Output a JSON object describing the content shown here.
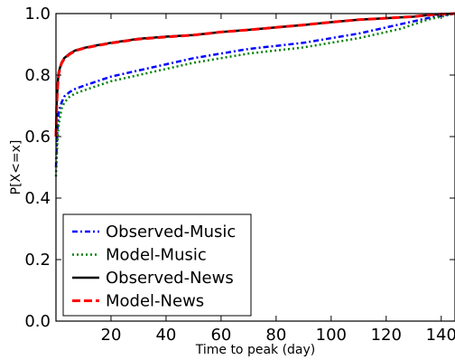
{
  "chart_data": {
    "type": "line",
    "title": "",
    "xlabel": "Time to peak (day)",
    "ylabel": "P[X<=x]",
    "xlim": [
      0,
      145
    ],
    "ylim": [
      0.0,
      1.0
    ],
    "x_ticks": [
      20,
      40,
      60,
      80,
      100,
      120,
      140
    ],
    "x_tick_labels": [
      "20",
      "40",
      "60",
      "80",
      "100",
      "120",
      "140"
    ],
    "y_ticks": [
      0.0,
      0.2,
      0.4,
      0.6,
      0.8,
      1.0
    ],
    "y_tick_labels": [
      "0.0",
      "0.2",
      "0.4",
      "0.6",
      "0.8",
      "1.0"
    ],
    "grid": false,
    "legend_position": "lower-left",
    "series": [
      {
        "name": "Observed-Music",
        "color": "#0000ff",
        "style": "dashdot",
        "x": [
          0,
          0.5,
          1,
          2,
          3,
          5,
          7,
          10,
          15,
          20,
          30,
          40,
          50,
          60,
          70,
          80,
          90,
          100,
          110,
          120,
          125,
          130,
          135,
          140,
          145
        ],
        "y": [
          0.5,
          0.62,
          0.68,
          0.71,
          0.73,
          0.745,
          0.755,
          0.765,
          0.78,
          0.795,
          0.815,
          0.835,
          0.855,
          0.87,
          0.885,
          0.895,
          0.905,
          0.92,
          0.935,
          0.955,
          0.965,
          0.975,
          0.985,
          0.993,
          1.0
        ]
      },
      {
        "name": "Model-Music",
        "color": "#008000",
        "style": "dotted",
        "x": [
          0,
          0.5,
          1,
          2,
          3,
          5,
          7,
          10,
          15,
          20,
          30,
          40,
          50,
          60,
          70,
          80,
          90,
          100,
          110,
          120,
          125,
          130,
          135,
          140,
          145
        ],
        "y": [
          0.47,
          0.58,
          0.64,
          0.69,
          0.71,
          0.73,
          0.74,
          0.75,
          0.765,
          0.78,
          0.8,
          0.82,
          0.84,
          0.855,
          0.87,
          0.88,
          0.89,
          0.905,
          0.92,
          0.94,
          0.95,
          0.965,
          0.98,
          0.99,
          1.0
        ]
      },
      {
        "name": "Observed-News",
        "color": "#000000",
        "style": "solid",
        "x": [
          0,
          0.3,
          0.7,
          1,
          2,
          3,
          5,
          7,
          10,
          15,
          20,
          30,
          40,
          50,
          60,
          70,
          80,
          90,
          100,
          110,
          120,
          130,
          135,
          140,
          145
        ],
        "y": [
          0.6,
          0.72,
          0.78,
          0.81,
          0.84,
          0.855,
          0.87,
          0.88,
          0.888,
          0.897,
          0.905,
          0.918,
          0.925,
          0.93,
          0.94,
          0.947,
          0.955,
          0.963,
          0.972,
          0.98,
          0.985,
          0.99,
          0.995,
          0.998,
          1.0
        ]
      },
      {
        "name": "Model-News",
        "color": "#ff0000",
        "style": "dashed",
        "x": [
          0,
          0.3,
          0.7,
          1,
          2,
          3,
          5,
          7,
          10,
          15,
          20,
          30,
          40,
          50,
          60,
          70,
          80,
          90,
          100,
          110,
          120,
          130,
          135,
          140,
          145
        ],
        "y": [
          0.6,
          0.71,
          0.775,
          0.805,
          0.838,
          0.853,
          0.868,
          0.879,
          0.887,
          0.896,
          0.904,
          0.917,
          0.924,
          0.93,
          0.94,
          0.947,
          0.955,
          0.963,
          0.972,
          0.98,
          0.985,
          0.99,
          0.995,
          0.998,
          1.0
        ]
      }
    ]
  }
}
